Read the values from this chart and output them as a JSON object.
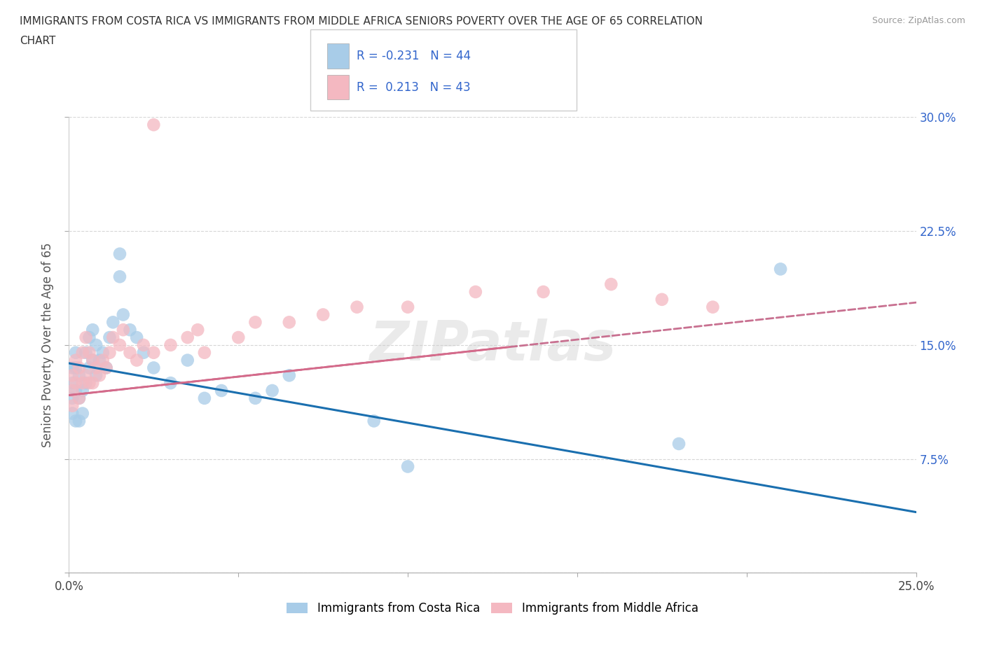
{
  "title_line1": "IMMIGRANTS FROM COSTA RICA VS IMMIGRANTS FROM MIDDLE AFRICA SENIORS POVERTY OVER THE AGE OF 65 CORRELATION",
  "title_line2": "CHART",
  "source_text": "Source: ZipAtlas.com",
  "ylabel": "Seniors Poverty Over the Age of 65",
  "xlim": [
    0.0,
    0.25
  ],
  "ylim": [
    0.0,
    0.3
  ],
  "xtick_vals": [
    0.0,
    0.05,
    0.1,
    0.15,
    0.2,
    0.25
  ],
  "xtick_labels": [
    "0.0%",
    "",
    "",
    "",
    "",
    "25.0%"
  ],
  "ytick_vals": [
    0.0,
    0.075,
    0.15,
    0.225,
    0.3
  ],
  "ytick_labels_right": [
    "",
    "7.5%",
    "15.0%",
    "22.5%",
    "30.0%"
  ],
  "grid_color": "#cccccc",
  "background_color": "#ffffff",
  "costa_rica_color": "#a8cce8",
  "middle_africa_color": "#f4b8c1",
  "costa_rica_line_color": "#1a6faf",
  "middle_africa_line_color": "#d46a8a",
  "middle_africa_line_color_dashed": "#c87090",
  "R_costa_rica": -0.231,
  "N_costa_rica": 44,
  "R_middle_africa": 0.213,
  "N_middle_africa": 43,
  "legend_label_1": "Immigrants from Costa Rica",
  "legend_label_2": "Immigrants from Middle Africa",
  "watermark": "ZIPatlas",
  "cr_trend_x0": 0.0,
  "cr_trend_y0": 0.138,
  "cr_trend_x1": 0.25,
  "cr_trend_y1": 0.04,
  "ma_trend_x0": 0.0,
  "ma_trend_y0": 0.117,
  "ma_trend_x1": 0.25,
  "ma_trend_y1": 0.178,
  "costa_rica_x": [
    0.001,
    0.001,
    0.001,
    0.001,
    0.002,
    0.002,
    0.002,
    0.002,
    0.003,
    0.003,
    0.003,
    0.004,
    0.004,
    0.005,
    0.005,
    0.006,
    0.006,
    0.007,
    0.007,
    0.008,
    0.008,
    0.009,
    0.01,
    0.011,
    0.012,
    0.013,
    0.015,
    0.016,
    0.018,
    0.02,
    0.022,
    0.025,
    0.03,
    0.035,
    0.04,
    0.045,
    0.055,
    0.06,
    0.065,
    0.09,
    0.1,
    0.18,
    0.21,
    0.015
  ],
  "costa_rica_y": [
    0.135,
    0.125,
    0.115,
    0.105,
    0.145,
    0.135,
    0.12,
    0.1,
    0.13,
    0.115,
    0.1,
    0.12,
    0.105,
    0.145,
    0.125,
    0.155,
    0.135,
    0.16,
    0.14,
    0.15,
    0.13,
    0.14,
    0.145,
    0.135,
    0.155,
    0.165,
    0.195,
    0.17,
    0.16,
    0.155,
    0.145,
    0.135,
    0.125,
    0.14,
    0.115,
    0.12,
    0.115,
    0.12,
    0.13,
    0.1,
    0.07,
    0.085,
    0.2,
    0.21
  ],
  "middle_africa_x": [
    0.001,
    0.001,
    0.001,
    0.002,
    0.002,
    0.003,
    0.003,
    0.004,
    0.004,
    0.005,
    0.005,
    0.006,
    0.006,
    0.007,
    0.007,
    0.008,
    0.009,
    0.01,
    0.011,
    0.012,
    0.013,
    0.015,
    0.016,
    0.018,
    0.02,
    0.022,
    0.025,
    0.03,
    0.035,
    0.038,
    0.04,
    0.05,
    0.055,
    0.065,
    0.075,
    0.085,
    0.1,
    0.12,
    0.14,
    0.16,
    0.175,
    0.19,
    0.025
  ],
  "middle_africa_y": [
    0.13,
    0.12,
    0.11,
    0.14,
    0.125,
    0.135,
    0.115,
    0.145,
    0.125,
    0.155,
    0.13,
    0.145,
    0.125,
    0.14,
    0.125,
    0.135,
    0.13,
    0.14,
    0.135,
    0.145,
    0.155,
    0.15,
    0.16,
    0.145,
    0.14,
    0.15,
    0.145,
    0.15,
    0.155,
    0.16,
    0.145,
    0.155,
    0.165,
    0.165,
    0.17,
    0.175,
    0.175,
    0.185,
    0.185,
    0.19,
    0.18,
    0.175,
    0.295
  ]
}
